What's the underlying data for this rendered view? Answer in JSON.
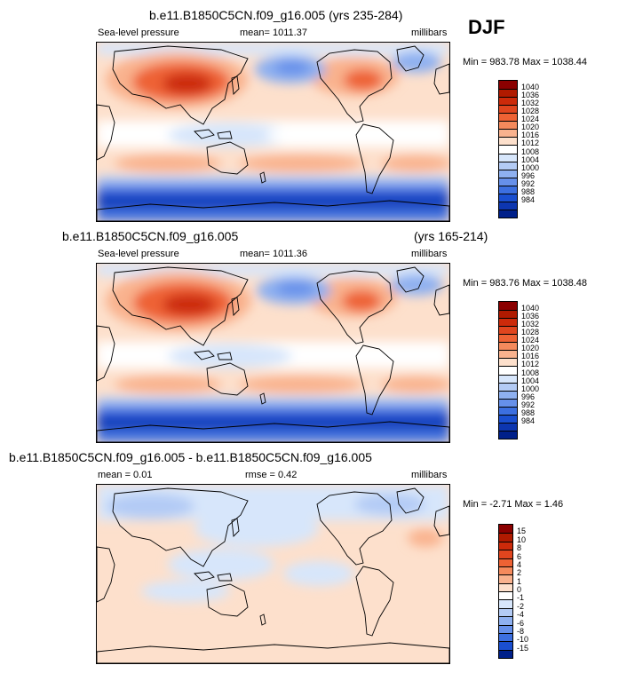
{
  "season": "DJF",
  "panels": [
    {
      "title": "b.e11.B1850C5CN.f09_g16.005 (yrs 235-284)",
      "left_label": "Sea-level pressure",
      "mid_label": "mean= 1011.37",
      "right_label": "millibars",
      "minmax": "Min = 983.78 Max = 1038.44"
    },
    {
      "title": "b.e11.B1850C5CN.f09_g16.005",
      "title_right": "(yrs 165-214)",
      "left_label": "Sea-level pressure",
      "mid_label": "mean= 1011.36",
      "right_label": "millibars",
      "minmax": "Min = 983.76 Max = 1038.48"
    },
    {
      "title": "b.e11.B1850C5CN.f09_g16.005 - b.e11.B1850C5CN.f09_g16.005",
      "left_label": "mean =  0.01",
      "mid_label": "rmse =  0.42",
      "right_label": "millibars",
      "minmax": "Min =  -2.71 Max =  1.46"
    }
  ],
  "slp_colorbar": {
    "labels": [
      "1040",
      "1036",
      "1032",
      "1028",
      "1024",
      "1020",
      "1016",
      "1012",
      "1008",
      "1004",
      "1000",
      "996",
      "992",
      "988",
      "984"
    ],
    "colors": [
      "#8b0000",
      "#b01a00",
      "#cc2a0a",
      "#e0451e",
      "#ee6234",
      "#f58a5c",
      "#f9b28e",
      "#fde0cc",
      "#ffffff",
      "#d7e6fb",
      "#b3cbf5",
      "#8eb0f0",
      "#6690ea",
      "#3c6fe0",
      "#1a4fd0",
      "#0d36b0",
      "#00208a"
    ]
  },
  "diff_colorbar": {
    "labels": [
      "15",
      "10",
      "8",
      "6",
      "4",
      "2",
      "1",
      "0",
      "-1",
      "-2",
      "-4",
      "-6",
      "-8",
      "-10",
      "-15"
    ],
    "colors": [
      "#8b0000",
      "#b01a00",
      "#cc2a0a",
      "#e0451e",
      "#ee6234",
      "#f58a5c",
      "#f9b28e",
      "#fde0cc",
      "#ffffff",
      "#d7e6fb",
      "#b3cbf5",
      "#8eb0f0",
      "#6690ea",
      "#3c6fe0",
      "#1a4fd0",
      "#00208a"
    ]
  }
}
